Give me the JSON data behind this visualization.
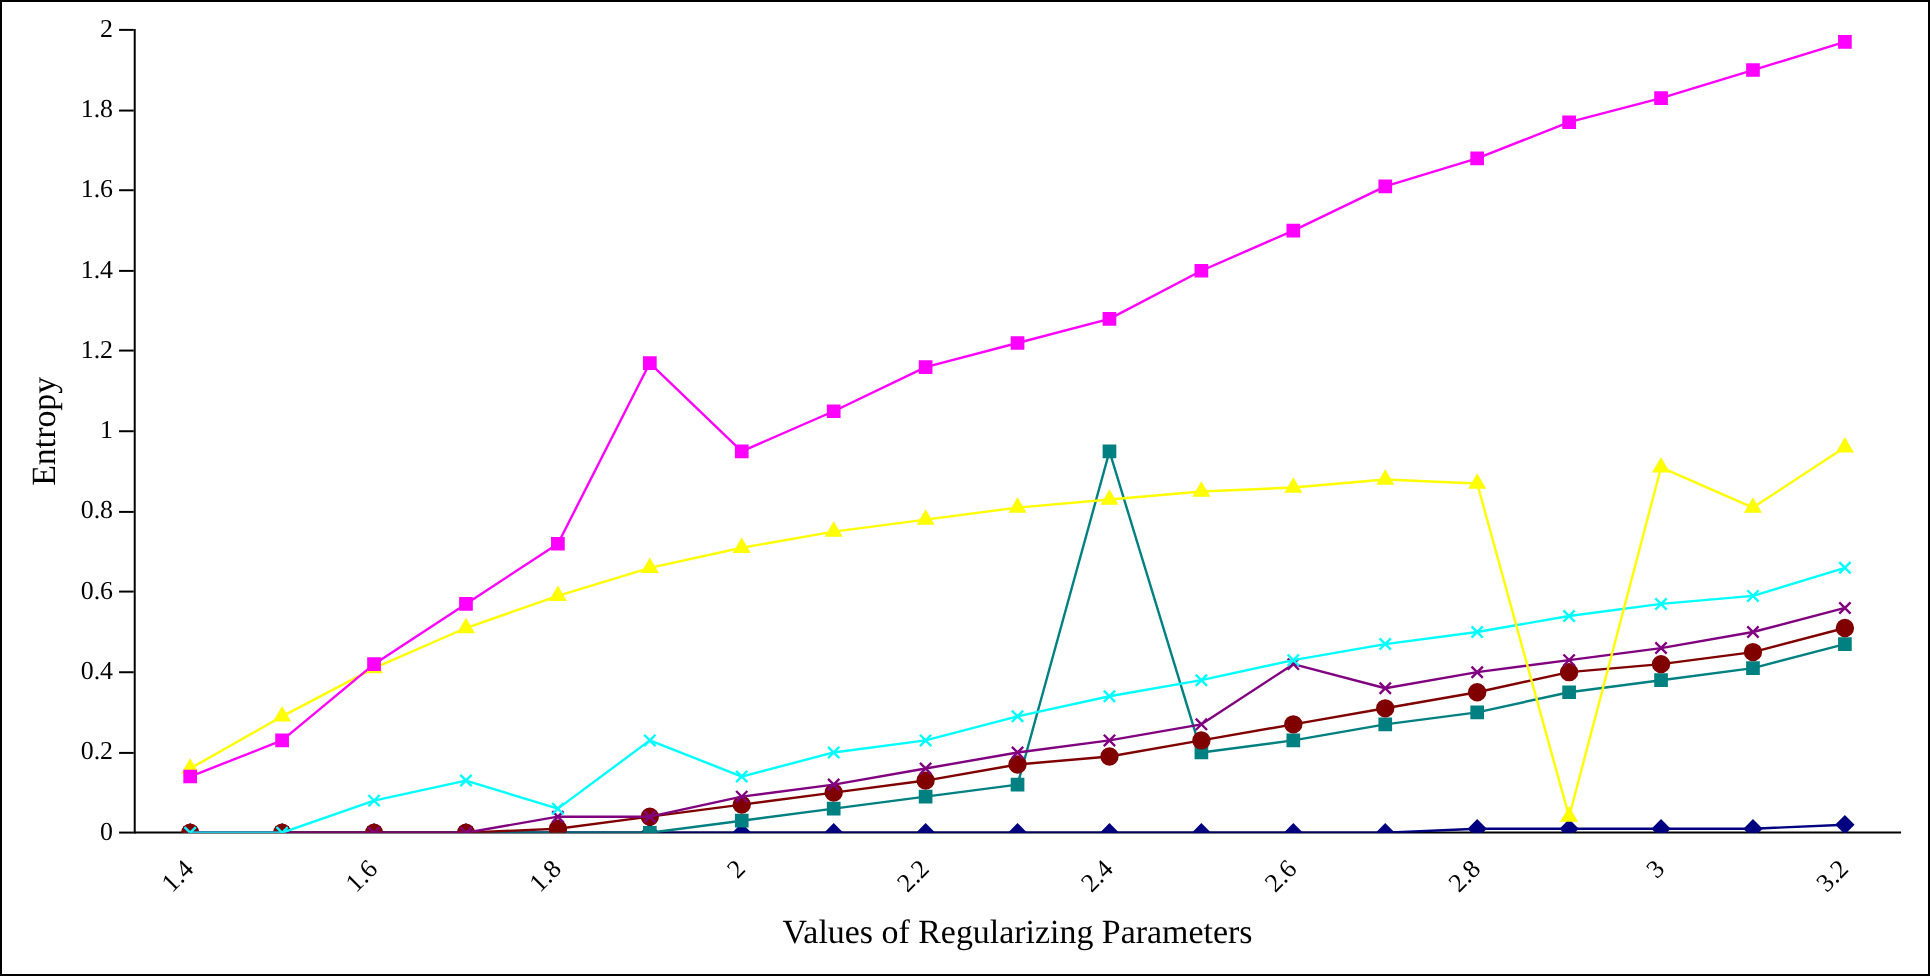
{
  "chart_data": {
    "type": "line",
    "xlabel": "Values of Regularizing Parameters",
    "ylabel": "Entropy",
    "x": [
      1.4,
      1.5,
      1.6,
      1.7,
      1.8,
      1.9,
      2.0,
      2.1,
      2.2,
      2.3,
      2.4,
      2.5,
      2.6,
      2.7,
      2.8,
      2.9,
      3.0,
      3.1,
      3.2
    ],
    "xlim": [
      1.34,
      3.26
    ],
    "xticks": [
      1.4,
      1.6,
      1.8,
      2,
      2.2,
      2.4,
      2.6,
      2.8,
      3,
      3.2
    ],
    "ylim": [
      0,
      2
    ],
    "yticks": [
      0,
      0.2,
      0.4,
      0.6,
      0.8,
      1,
      1.2,
      1.4,
      1.6,
      1.8,
      2
    ],
    "grid": false,
    "legend": false,
    "series": [
      {
        "color": "#ff00ff",
        "marker": "square",
        "values": [
          0.14,
          0.23,
          0.42,
          0.57,
          0.72,
          1.17,
          0.95,
          1.05,
          1.16,
          1.22,
          1.28,
          1.4,
          1.5,
          1.61,
          1.68,
          1.77,
          1.83,
          1.9,
          1.97
        ]
      },
      {
        "color": "#ffff00",
        "marker": "triangle",
        "values": [
          0.16,
          0.29,
          0.41,
          0.51,
          0.59,
          0.66,
          0.71,
          0.75,
          0.78,
          0.81,
          0.83,
          0.85,
          0.86,
          0.88,
          0.87,
          0.04,
          0.91,
          0.81,
          0.96
        ]
      },
      {
        "color": "#00ffff",
        "marker": "cross",
        "values": [
          0,
          0,
          0.08,
          0.13,
          0.06,
          0.23,
          0.14,
          0.2,
          0.23,
          0.29,
          0.34,
          0.38,
          0.43,
          0.47,
          0.5,
          0.54,
          0.57,
          0.59,
          0.66
        ]
      },
      {
        "color": "#800080",
        "marker": "cross",
        "values": [
          0,
          0,
          0,
          0,
          0.04,
          0.04,
          0.09,
          0.12,
          0.16,
          0.2,
          0.23,
          0.27,
          0.42,
          0.36,
          0.4,
          0.43,
          0.46,
          0.5,
          0.56
        ]
      },
      {
        "color": "#800000",
        "marker": "circle",
        "values": [
          0,
          0,
          0,
          0,
          0.01,
          0.04,
          0.07,
          0.1,
          0.13,
          0.17,
          0.19,
          0.23,
          0.27,
          0.31,
          0.35,
          0.4,
          0.42,
          0.45,
          0.51
        ]
      },
      {
        "color": "#008080",
        "marker": "square",
        "values": [
          0,
          0,
          0,
          0,
          0,
          0,
          0.03,
          0.06,
          0.09,
          0.12,
          0.95,
          0.2,
          0.23,
          0.27,
          0.3,
          0.35,
          0.38,
          0.41,
          0.47
        ]
      },
      {
        "color": "#000080",
        "marker": "diamond",
        "values": [
          0,
          0,
          0,
          0,
          0,
          0,
          0,
          0,
          0,
          0,
          0,
          0,
          0,
          0,
          0.01,
          0.01,
          0.01,
          0.01,
          0.02
        ]
      }
    ]
  }
}
